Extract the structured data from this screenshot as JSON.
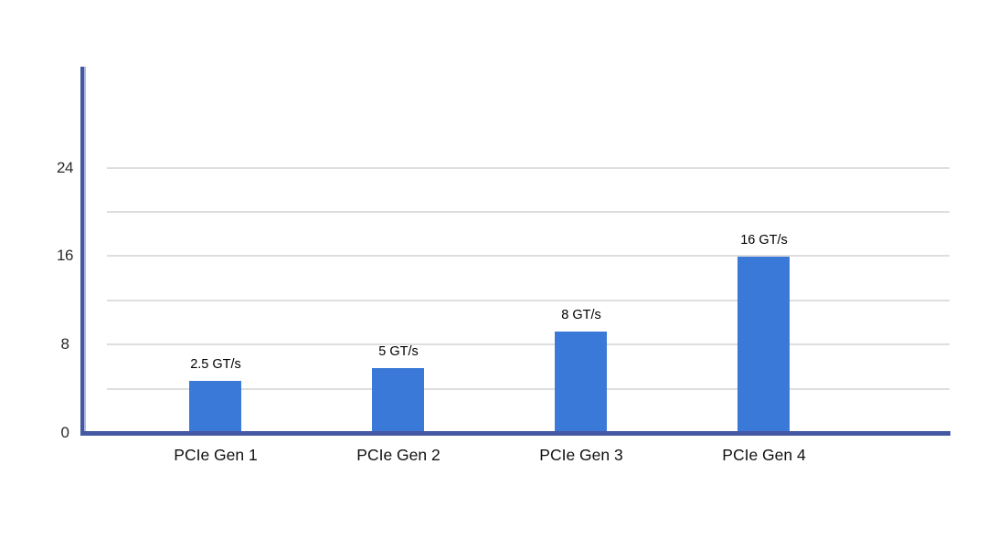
{
  "page": {
    "background": "#ffffff"
  },
  "chart_data": {
    "type": "bar",
    "title": "",
    "xlabel": "",
    "ylabel": "",
    "categories": [
      "PCIe Gen 1",
      "PCIe Gen 2",
      "PCIe Gen 3",
      "PCIe Gen 4"
    ],
    "values": [
      2.5,
      5,
      8,
      16
    ],
    "value_unit": "GT/s",
    "bar_labels": [
      "2.5 GT/s",
      "5 GT/s",
      "8 GT/s",
      "16 GT/s"
    ],
    "y_axis": {
      "tick_values": [
        0,
        8,
        16,
        24
      ],
      "tick_labels": [
        "0",
        "8",
        "16",
        "24"
      ],
      "gridline_values": [
        4,
        8,
        12,
        16,
        20,
        24
      ],
      "ylim": [
        0,
        33
      ]
    },
    "legend": {
      "visible": false
    },
    "grid": "horizontal",
    "layout_hints": {
      "bars_not_to_scale": true,
      "rendered_bar_units": [
        4.7,
        5.87,
        9.17,
        15.95
      ],
      "legend_position": "none"
    },
    "colors": {
      "bar": "#3A79D7",
      "axis_line": "#4458A3",
      "axis_line_edge": "#A9B8DD",
      "gridline": "#DEDEDE",
      "tick_label": "#2B2B2B",
      "bar_label": "#000000",
      "category_label": "#111111"
    }
  }
}
